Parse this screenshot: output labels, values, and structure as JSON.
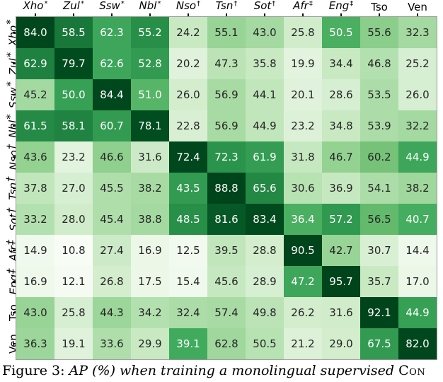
{
  "figure": {
    "caption": {
      "prefix": "Figure 3:",
      "body": " AP (%) when training a monolingual supervised ",
      "tail_smallcaps": "Con"
    }
  },
  "chart_data": {
    "type": "heatmap",
    "colormap": "Greens",
    "value_format": "one-decimal",
    "axis_labels": [
      {
        "text": "Xho",
        "mark": "*",
        "italic": true
      },
      {
        "text": "Zul",
        "mark": "*",
        "italic": true
      },
      {
        "text": "Ssw",
        "mark": "*",
        "italic": true
      },
      {
        "text": "Nbl",
        "mark": "*",
        "italic": true
      },
      {
        "text": "Nso",
        "mark": "†",
        "italic": true
      },
      {
        "text": "Tsn",
        "mark": "†",
        "italic": true
      },
      {
        "text": "Sot",
        "mark": "†",
        "italic": true
      },
      {
        "text": "Afr",
        "mark": "‡",
        "italic": true
      },
      {
        "text": "Eng",
        "mark": "‡",
        "italic": true
      },
      {
        "text": "Tso",
        "mark": "",
        "italic": false
      },
      {
        "text": "Ven",
        "mark": "",
        "italic": false
      }
    ],
    "values": [
      [
        84.0,
        58.5,
        62.3,
        55.2,
        24.2,
        55.1,
        43.0,
        25.8,
        50.5,
        55.6,
        32.3
      ],
      [
        62.9,
        79.7,
        62.6,
        52.8,
        20.2,
        47.3,
        35.8,
        19.9,
        34.4,
        46.8,
        25.2
      ],
      [
        45.2,
        50.0,
        84.4,
        51.0,
        26.0,
        56.9,
        44.1,
        20.1,
        28.6,
        53.5,
        26.0
      ],
      [
        61.5,
        58.1,
        60.7,
        78.1,
        22.8,
        56.9,
        44.9,
        23.2,
        34.8,
        53.9,
        32.2
      ],
      [
        43.6,
        23.2,
        46.6,
        31.6,
        72.4,
        72.3,
        61.9,
        31.8,
        46.7,
        60.2,
        44.9
      ],
      [
        37.8,
        27.0,
        45.5,
        38.2,
        43.5,
        88.8,
        65.6,
        30.6,
        36.9,
        54.1,
        38.2
      ],
      [
        33.2,
        28.0,
        45.4,
        38.8,
        48.5,
        81.6,
        83.4,
        36.4,
        57.2,
        56.5,
        40.7
      ],
      [
        14.9,
        10.8,
        27.4,
        16.9,
        12.5,
        39.5,
        28.8,
        90.5,
        42.7,
        30.7,
        14.4
      ],
      [
        16.9,
        12.1,
        26.8,
        17.5,
        15.4,
        45.6,
        28.9,
        47.2,
        95.7,
        35.7,
        17.0
      ],
      [
        43.0,
        25.8,
        44.3,
        34.2,
        32.4,
        57.4,
        49.8,
        26.2,
        31.6,
        92.1,
        44.9
      ],
      [
        36.3,
        19.1,
        33.6,
        29.9,
        39.1,
        62.8,
        50.5,
        21.2,
        29.0,
        67.5,
        82.0
      ]
    ],
    "shades_norm": [
      [
        0.97,
        0.72,
        0.52,
        0.62,
        0.17,
        0.3,
        0.27,
        0.15,
        0.48,
        0.33,
        0.27
      ],
      [
        0.68,
        0.93,
        0.52,
        0.57,
        0.1,
        0.21,
        0.17,
        0.09,
        0.17,
        0.23,
        0.13
      ],
      [
        0.27,
        0.55,
        0.97,
        0.45,
        0.14,
        0.26,
        0.19,
        0.1,
        0.13,
        0.25,
        0.13
      ],
      [
        0.64,
        0.67,
        0.57,
        0.92,
        0.12,
        0.26,
        0.19,
        0.11,
        0.17,
        0.25,
        0.27
      ],
      [
        0.31,
        0.09,
        0.32,
        0.16,
        0.97,
        0.6,
        0.56,
        0.18,
        0.31,
        0.38,
        0.52
      ],
      [
        0.19,
        0.13,
        0.24,
        0.26,
        0.57,
        1.0,
        0.65,
        0.22,
        0.18,
        0.25,
        0.28
      ],
      [
        0.23,
        0.15,
        0.24,
        0.27,
        0.62,
        0.85,
        0.95,
        0.48,
        0.58,
        0.42,
        0.49
      ],
      [
        0.03,
        0.0,
        0.16,
        0.05,
        0.02,
        0.19,
        0.14,
        1.0,
        0.3,
        0.12,
        0.04
      ],
      [
        0.04,
        0.01,
        0.14,
        0.05,
        0.03,
        0.18,
        0.13,
        0.52,
        1.0,
        0.17,
        0.05
      ],
      [
        0.3,
        0.13,
        0.29,
        0.23,
        0.25,
        0.26,
        0.21,
        0.14,
        0.15,
        1.0,
        0.55
      ],
      [
        0.29,
        0.1,
        0.24,
        0.17,
        0.5,
        0.28,
        0.22,
        0.11,
        0.14,
        0.57,
        0.97
      ]
    ],
    "palette": {
      "anchors": [
        "#f7fcf5",
        "#e0f2db",
        "#bfe5b9",
        "#98d496",
        "#6dbe70",
        "#41ab5d",
        "#2b944c",
        "#1b7c3c",
        "#0b632c",
        "#004f20",
        "#00441b"
      ],
      "dark_text": "#262626",
      "light_text": "#ffffff",
      "white_text_threshold": 0.44,
      "frame_color": "#9b9b9b",
      "tick_color": "#111111"
    }
  }
}
